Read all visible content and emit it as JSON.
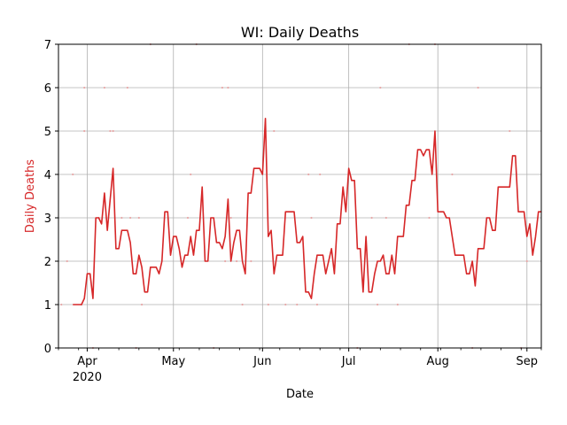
{
  "chart_data": {
    "type": "line",
    "title": "WI: Daily Deaths",
    "xlabel": "Date",
    "ylabel": "Daily Deaths",
    "x_range": [
      "2020-03-22",
      "2020-09-06"
    ],
    "ylim": [
      0,
      7
    ],
    "yticks": [
      0,
      1,
      2,
      3,
      4,
      5,
      6,
      7
    ],
    "xticks": [
      {
        "date": "2020-04-01",
        "label": "Apr",
        "sublabel": "2020"
      },
      {
        "date": "2020-05-01",
        "label": "May",
        "sublabel": ""
      },
      {
        "date": "2020-06-01",
        "label": "Jun",
        "sublabel": ""
      },
      {
        "date": "2020-07-01",
        "label": "Jul",
        "sublabel": ""
      },
      {
        "date": "2020-08-01",
        "label": "Aug",
        "sublabel": ""
      },
      {
        "date": "2020-09-01",
        "label": "Sep",
        "sublabel": ""
      }
    ],
    "grid": true,
    "colors": {
      "line": "#d62728",
      "scatter": "#e8a8a8",
      "ylabel": "#d62728",
      "grid": "#b0b0b0"
    },
    "series": [
      {
        "type": "line",
        "x": [
          "2020-03-27",
          "2020-03-28",
          "2020-03-29",
          "2020-03-30",
          "2020-03-31",
          "2020-04-01",
          "2020-04-02",
          "2020-04-03",
          "2020-04-04",
          "2020-04-05",
          "2020-04-06",
          "2020-04-07",
          "2020-04-08",
          "2020-04-09",
          "2020-04-10",
          "2020-04-11",
          "2020-04-12",
          "2020-04-13",
          "2020-04-14",
          "2020-04-15",
          "2020-04-16",
          "2020-04-17",
          "2020-04-18",
          "2020-04-19",
          "2020-04-20",
          "2020-04-21",
          "2020-04-22",
          "2020-04-23",
          "2020-04-24",
          "2020-04-25",
          "2020-04-26",
          "2020-04-27",
          "2020-04-28",
          "2020-04-29",
          "2020-04-30",
          "2020-05-01",
          "2020-05-02",
          "2020-05-03",
          "2020-05-04",
          "2020-05-05",
          "2020-05-06",
          "2020-05-07",
          "2020-05-08",
          "2020-05-09",
          "2020-05-10",
          "2020-05-11",
          "2020-05-12",
          "2020-05-13",
          "2020-05-14",
          "2020-05-15",
          "2020-05-16",
          "2020-05-17",
          "2020-05-18",
          "2020-05-19",
          "2020-05-20",
          "2020-05-21",
          "2020-05-22",
          "2020-05-23",
          "2020-05-24",
          "2020-05-25",
          "2020-05-26",
          "2020-05-27",
          "2020-05-28",
          "2020-05-29",
          "2020-05-30",
          "2020-05-31",
          "2020-06-01",
          "2020-06-02",
          "2020-06-03",
          "2020-06-04",
          "2020-06-05",
          "2020-06-06",
          "2020-06-07",
          "2020-06-08",
          "2020-06-09",
          "2020-06-10",
          "2020-06-11",
          "2020-06-12",
          "2020-06-13",
          "2020-06-14",
          "2020-06-15",
          "2020-06-16",
          "2020-06-17",
          "2020-06-18",
          "2020-06-19",
          "2020-06-20",
          "2020-06-21",
          "2020-06-22",
          "2020-06-23",
          "2020-06-24",
          "2020-06-25",
          "2020-06-26",
          "2020-06-27",
          "2020-06-28",
          "2020-06-29",
          "2020-06-30",
          "2020-07-01",
          "2020-07-02",
          "2020-07-03",
          "2020-07-04",
          "2020-07-05",
          "2020-07-06",
          "2020-07-07",
          "2020-07-08",
          "2020-07-09",
          "2020-07-10",
          "2020-07-11",
          "2020-07-12",
          "2020-07-13",
          "2020-07-14",
          "2020-07-15",
          "2020-07-16",
          "2020-07-17",
          "2020-07-18",
          "2020-07-19",
          "2020-07-20",
          "2020-07-21",
          "2020-07-22",
          "2020-07-23",
          "2020-07-24",
          "2020-07-25",
          "2020-07-26",
          "2020-07-27",
          "2020-07-28",
          "2020-07-29",
          "2020-07-30",
          "2020-07-31",
          "2020-08-01",
          "2020-08-02",
          "2020-08-03",
          "2020-08-04",
          "2020-08-05",
          "2020-08-06",
          "2020-08-07",
          "2020-08-08",
          "2020-08-09",
          "2020-08-10",
          "2020-08-11",
          "2020-08-12",
          "2020-08-13",
          "2020-08-14",
          "2020-08-15",
          "2020-08-16",
          "2020-08-17",
          "2020-08-18",
          "2020-08-19",
          "2020-08-20",
          "2020-08-21",
          "2020-08-22",
          "2020-08-23",
          "2020-08-24",
          "2020-08-25",
          "2020-08-26",
          "2020-08-27",
          "2020-08-28",
          "2020-08-29",
          "2020-08-30",
          "2020-08-31",
          "2020-09-01",
          "2020-09-02",
          "2020-09-03",
          "2020-09-04",
          "2020-09-05",
          "2020-09-06"
        ],
        "values": [
          1.0,
          1.0,
          1.0,
          1.0,
          1.14,
          1.71,
          1.71,
          1.14,
          3.0,
          3.0,
          2.86,
          3.57,
          2.71,
          3.43,
          4.14,
          2.29,
          2.29,
          2.71,
          2.71,
          2.71,
          2.43,
          1.71,
          1.71,
          2.14,
          1.86,
          1.29,
          1.29,
          1.86,
          1.86,
          1.86,
          1.71,
          2.0,
          3.14,
          3.14,
          2.14,
          2.57,
          2.57,
          2.29,
          1.86,
          2.14,
          2.14,
          2.57,
          2.14,
          2.71,
          2.71,
          3.71,
          2.0,
          2.0,
          3.0,
          3.0,
          2.43,
          2.43,
          2.29,
          2.57,
          3.43,
          2.0,
          2.43,
          2.71,
          2.71,
          2.0,
          1.71,
          3.57,
          3.57,
          4.14,
          4.14,
          4.14,
          4.0,
          5.29,
          2.57,
          2.71,
          1.71,
          2.14,
          2.14,
          2.14,
          3.14,
          3.14,
          3.14,
          3.14,
          2.43,
          2.43,
          2.57,
          1.29,
          1.29,
          1.14,
          1.71,
          2.14,
          2.14,
          2.14,
          1.71,
          2.0,
          2.29,
          1.71,
          2.86,
          2.86,
          3.71,
          3.14,
          4.14,
          3.86,
          3.86,
          2.29,
          2.29,
          1.29,
          2.57,
          1.29,
          1.29,
          1.71,
          2.0,
          2.0,
          2.14,
          1.71,
          1.71,
          2.14,
          1.71,
          2.57,
          2.57,
          2.57,
          3.29,
          3.29,
          3.86,
          3.86,
          4.57,
          4.57,
          4.43,
          4.57,
          4.57,
          4.0,
          5.0,
          3.14,
          3.14,
          3.14,
          3.0,
          3.0,
          2.57,
          2.14,
          2.14,
          2.14,
          2.14,
          1.71,
          1.71,
          2.0,
          1.43,
          2.29,
          2.29,
          2.29,
          3.0,
          3.0,
          2.71,
          2.71,
          3.71,
          3.71,
          3.71,
          3.71,
          3.71,
          4.43,
          4.43,
          3.14,
          3.14,
          3.14,
          2.57,
          2.86,
          2.14,
          2.57,
          3.14,
          3.14
        ]
      },
      {
        "type": "scatter",
        "points": [
          {
            "x": "2020-03-23",
            "y": 1
          },
          {
            "x": "2020-03-25",
            "y": 2
          },
          {
            "x": "2020-03-27",
            "y": 4
          },
          {
            "x": "2020-03-30",
            "y": 1
          },
          {
            "x": "2020-03-31",
            "y": 6
          },
          {
            "x": "2020-03-31",
            "y": 5
          },
          {
            "x": "2020-04-03",
            "y": 0
          },
          {
            "x": "2020-04-05",
            "y": 3
          },
          {
            "x": "2020-04-07",
            "y": 6
          },
          {
            "x": "2020-04-09",
            "y": 5
          },
          {
            "x": "2020-04-10",
            "y": 5
          },
          {
            "x": "2020-04-13",
            "y": 3
          },
          {
            "x": "2020-04-15",
            "y": 6
          },
          {
            "x": "2020-04-16",
            "y": 3
          },
          {
            "x": "2020-04-18",
            "y": 0
          },
          {
            "x": "2020-04-19",
            "y": 3
          },
          {
            "x": "2020-04-20",
            "y": 1
          },
          {
            "x": "2020-04-23",
            "y": 7
          },
          {
            "x": "2020-05-06",
            "y": 3
          },
          {
            "x": "2020-05-07",
            "y": 4
          },
          {
            "x": "2020-05-09",
            "y": 7
          },
          {
            "x": "2020-05-15",
            "y": 0
          },
          {
            "x": "2020-05-18",
            "y": 6
          },
          {
            "x": "2020-05-19",
            "y": 2
          },
          {
            "x": "2020-05-20",
            "y": 6
          },
          {
            "x": "2020-05-21",
            "y": 3
          },
          {
            "x": "2020-05-23",
            "y": 2
          },
          {
            "x": "2020-05-25",
            "y": 1
          },
          {
            "x": "2020-05-28",
            "y": 2
          },
          {
            "x": "2020-06-03",
            "y": 1
          },
          {
            "x": "2020-06-05",
            "y": 5
          },
          {
            "x": "2020-06-09",
            "y": 1
          },
          {
            "x": "2020-06-13",
            "y": 1
          },
          {
            "x": "2020-06-17",
            "y": 4
          },
          {
            "x": "2020-06-18",
            "y": 3
          },
          {
            "x": "2020-06-20",
            "y": 1
          },
          {
            "x": "2020-06-21",
            "y": 4
          },
          {
            "x": "2020-07-01",
            "y": 4
          },
          {
            "x": "2020-07-04",
            "y": 0
          },
          {
            "x": "2020-07-09",
            "y": 3
          },
          {
            "x": "2020-07-11",
            "y": 1
          },
          {
            "x": "2020-07-12",
            "y": 6
          },
          {
            "x": "2020-07-14",
            "y": 3
          },
          {
            "x": "2020-07-18",
            "y": 1
          },
          {
            "x": "2020-07-22",
            "y": 7
          },
          {
            "x": "2020-07-29",
            "y": 3
          },
          {
            "x": "2020-07-31",
            "y": 7
          },
          {
            "x": "2020-08-06",
            "y": 4
          },
          {
            "x": "2020-08-13",
            "y": 0
          },
          {
            "x": "2020-08-15",
            "y": 6
          },
          {
            "x": "2020-08-26",
            "y": 5
          },
          {
            "x": "2020-08-30",
            "y": 0
          },
          {
            "x": "2020-09-01",
            "y": 2
          }
        ]
      }
    ]
  }
}
